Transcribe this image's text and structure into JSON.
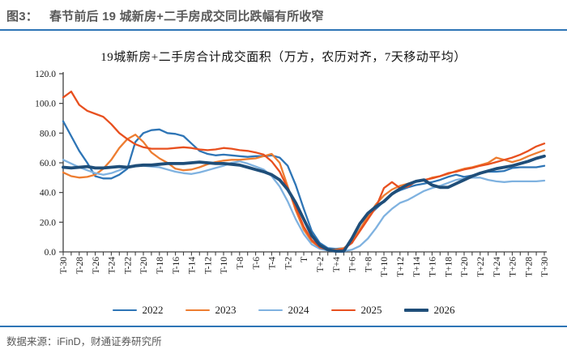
{
  "figure": {
    "label": "图3：",
    "title": "春节前后 19 城新房+二手房成交同比跌幅有所收窄"
  },
  "chart_data": {
    "type": "line",
    "title": "19城新房+二手房合计成交面积（万方，农历对齐，7天移动平均）",
    "xlabel": "",
    "ylabel": "",
    "ylim": [
      0,
      120
    ],
    "y_tick_labels": [
      "0.0",
      "20.0",
      "40.0",
      "60.0",
      "80.0",
      "100.0",
      "120.0"
    ],
    "x_day_range": [
      -30,
      30
    ],
    "x_tick_labels": [
      "T-30",
      "T-28",
      "T-26",
      "T-24",
      "T-22",
      "T-20",
      "T-18",
      "T-16",
      "T-14",
      "T-12",
      "T-10",
      "T-8",
      "T-6",
      "T-4",
      "T-2",
      "T",
      "T+2",
      "T+4",
      "T+6",
      "T+8",
      "T+10",
      "T+12",
      "T+14",
      "T+16",
      "T+18",
      "T+20",
      "T+22",
      "T+24",
      "T+26",
      "T+28",
      "T+30"
    ],
    "grid": false,
    "legend_position": "bottom",
    "series": [
      {
        "name": "2022",
        "color": "#2E75B6",
        "width": 2.3,
        "values": [
          88,
          78,
          68,
          60,
          51,
          49.5,
          49.5,
          52,
          56,
          74,
          80,
          82,
          82.5,
          80,
          79.5,
          78,
          73,
          68,
          66,
          65,
          65.5,
          65,
          64.5,
          64,
          64.5,
          64.5,
          65,
          63.5,
          58,
          45,
          29,
          14,
          6,
          2.5,
          2,
          2.5,
          6,
          15,
          24,
          29,
          34,
          39,
          41.5,
          43.5,
          45,
          46,
          47,
          48.5,
          50.5,
          52,
          50.5,
          51.5,
          53,
          54,
          54,
          54.5,
          56.5,
          57,
          57,
          57,
          58
        ]
      },
      {
        "name": "2023",
        "color": "#ED7D31",
        "width": 2.3,
        "values": [
          53.5,
          51,
          50,
          50.5,
          52,
          56,
          62,
          70,
          76,
          79,
          74,
          67,
          63,
          60,
          56,
          55,
          55.5,
          57,
          59,
          60.5,
          61.5,
          62,
          62,
          62.5,
          63,
          64.5,
          66,
          60,
          44,
          28,
          15,
          7,
          3,
          1.5,
          1.5,
          2.5,
          7,
          15,
          24,
          32,
          38,
          42,
          44.5,
          46,
          47.5,
          48,
          50,
          51,
          52.5,
          54.5,
          56,
          57,
          58.5,
          60,
          63.5,
          62,
          60.5,
          62,
          64.5,
          66.5,
          68.5
        ]
      },
      {
        "name": "2024",
        "color": "#7FB2E0",
        "width": 2.3,
        "values": [
          62,
          59.5,
          57,
          55,
          53,
          52,
          53,
          55,
          57,
          58,
          58,
          57.5,
          57,
          55.5,
          54,
          53,
          52.5,
          53.5,
          55,
          56.5,
          58,
          60,
          61,
          59.5,
          57.5,
          55.5,
          51,
          44,
          34,
          22,
          12,
          5,
          2,
          1,
          0.5,
          0.5,
          1.5,
          4,
          9,
          16,
          24,
          29,
          33,
          35,
          38,
          41,
          43,
          44.5,
          46.5,
          48.5,
          49.5,
          50,
          50,
          48.5,
          47.5,
          47,
          47.5,
          47.5,
          47.5,
          47.5,
          48
        ]
      },
      {
        "name": "2025",
        "color": "#E8501F",
        "width": 2.3,
        "values": [
          104,
          108,
          99,
          95,
          93,
          91,
          86,
          80,
          76,
          72.5,
          70.5,
          69.5,
          69.5,
          69.5,
          70,
          70.5,
          70,
          69,
          68.5,
          69,
          70,
          69.5,
          68.5,
          68,
          67,
          65.5,
          61,
          54,
          43,
          30,
          17,
          8,
          3,
          1.5,
          1,
          2,
          6,
          14,
          22,
          30,
          43,
          47,
          43,
          44,
          47.5,
          48.5,
          49.5,
          51,
          53,
          54,
          55.5,
          56.5,
          58,
          59,
          60.5,
          62,
          63.5,
          65.5,
          68,
          71,
          73
        ]
      },
      {
        "name": "2026",
        "color": "#1F4E79",
        "width": 3.8,
        "values": [
          57,
          56.5,
          57,
          57.5,
          56.5,
          56.5,
          57,
          57.5,
          57,
          58,
          58.5,
          58.5,
          59,
          59.5,
          59.5,
          59.5,
          60,
          60.5,
          60,
          59.5,
          59.5,
          59,
          58.5,
          57,
          55.5,
          54,
          52,
          48.5,
          42,
          33,
          22,
          11,
          4.5,
          1.5,
          0.5,
          0.5,
          9,
          19,
          26,
          30.5,
          34,
          39,
          42.5,
          45.5,
          47.5,
          48.5,
          45,
          43.5,
          43.5,
          46,
          48.5,
          51,
          53,
          54.5,
          56,
          57,
          58,
          59.5,
          61,
          63,
          64.5
        ]
      }
    ]
  },
  "footer": {
    "source": "数据来源：iFinD，财通证券研究所"
  },
  "colors": {
    "accent_rule": "#2e75b6",
    "header_text": "#595959",
    "axis": "#404040"
  }
}
